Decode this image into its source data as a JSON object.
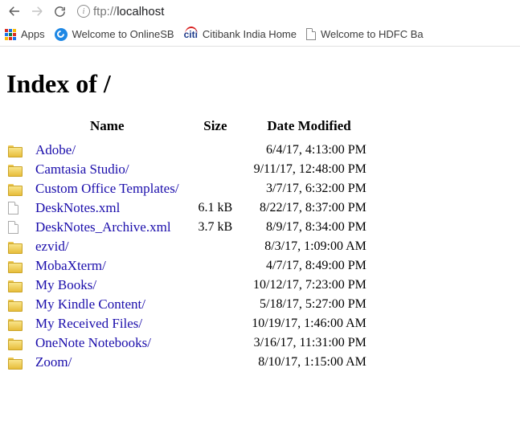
{
  "browser": {
    "url_scheme": "ftp://",
    "url_host": "localhost",
    "bookmarks": {
      "apps_label": "Apps",
      "apps_colors": [
        "#d93025",
        "#1a73e8",
        "#fbbc04",
        "#1a73e8",
        "#188038",
        "#d93025",
        "#fbbc04",
        "#d93025",
        "#1a73e8"
      ],
      "sbi_label": "Welcome to OnlineSB",
      "citi_text": "citi",
      "citi_label": "Citibank India Home",
      "hdfc_label": "Welcome to HDFC Ba"
    }
  },
  "page": {
    "title": "Index of /",
    "columns": {
      "name": "Name",
      "size": "Size",
      "date": "Date Modified"
    },
    "rows": [
      {
        "type": "dir",
        "name": "Adobe/",
        "size": "",
        "date": "6/4/17, 4:13:00 PM"
      },
      {
        "type": "dir",
        "name": "Camtasia Studio/",
        "size": "",
        "date": "9/11/17, 12:48:00 PM"
      },
      {
        "type": "dir",
        "name": "Custom Office Templates/",
        "size": "",
        "date": "3/7/17, 6:32:00 PM"
      },
      {
        "type": "file",
        "name": "DeskNotes.xml",
        "size": "6.1 kB",
        "date": "8/22/17, 8:37:00 PM"
      },
      {
        "type": "file",
        "name": "DeskNotes_Archive.xml",
        "size": "3.7 kB",
        "date": "8/9/17, 8:34:00 PM"
      },
      {
        "type": "dir",
        "name": "ezvid/",
        "size": "",
        "date": "8/3/17, 1:09:00 AM"
      },
      {
        "type": "dir",
        "name": "MobaXterm/",
        "size": "",
        "date": "4/7/17, 8:49:00 PM"
      },
      {
        "type": "dir",
        "name": "My Books/",
        "size": "",
        "date": "10/12/17, 7:23:00 PM"
      },
      {
        "type": "dir",
        "name": "My Kindle Content/",
        "size": "",
        "date": "5/18/17, 5:27:00 PM"
      },
      {
        "type": "dir",
        "name": "My Received Files/",
        "size": "",
        "date": "10/19/17, 1:46:00 AM"
      },
      {
        "type": "dir",
        "name": "OneNote Notebooks/",
        "size": "",
        "date": "3/16/17, 11:31:00 PM"
      },
      {
        "type": "dir",
        "name": "Zoom/",
        "size": "",
        "date": "8/10/17, 1:15:00 AM"
      }
    ]
  }
}
